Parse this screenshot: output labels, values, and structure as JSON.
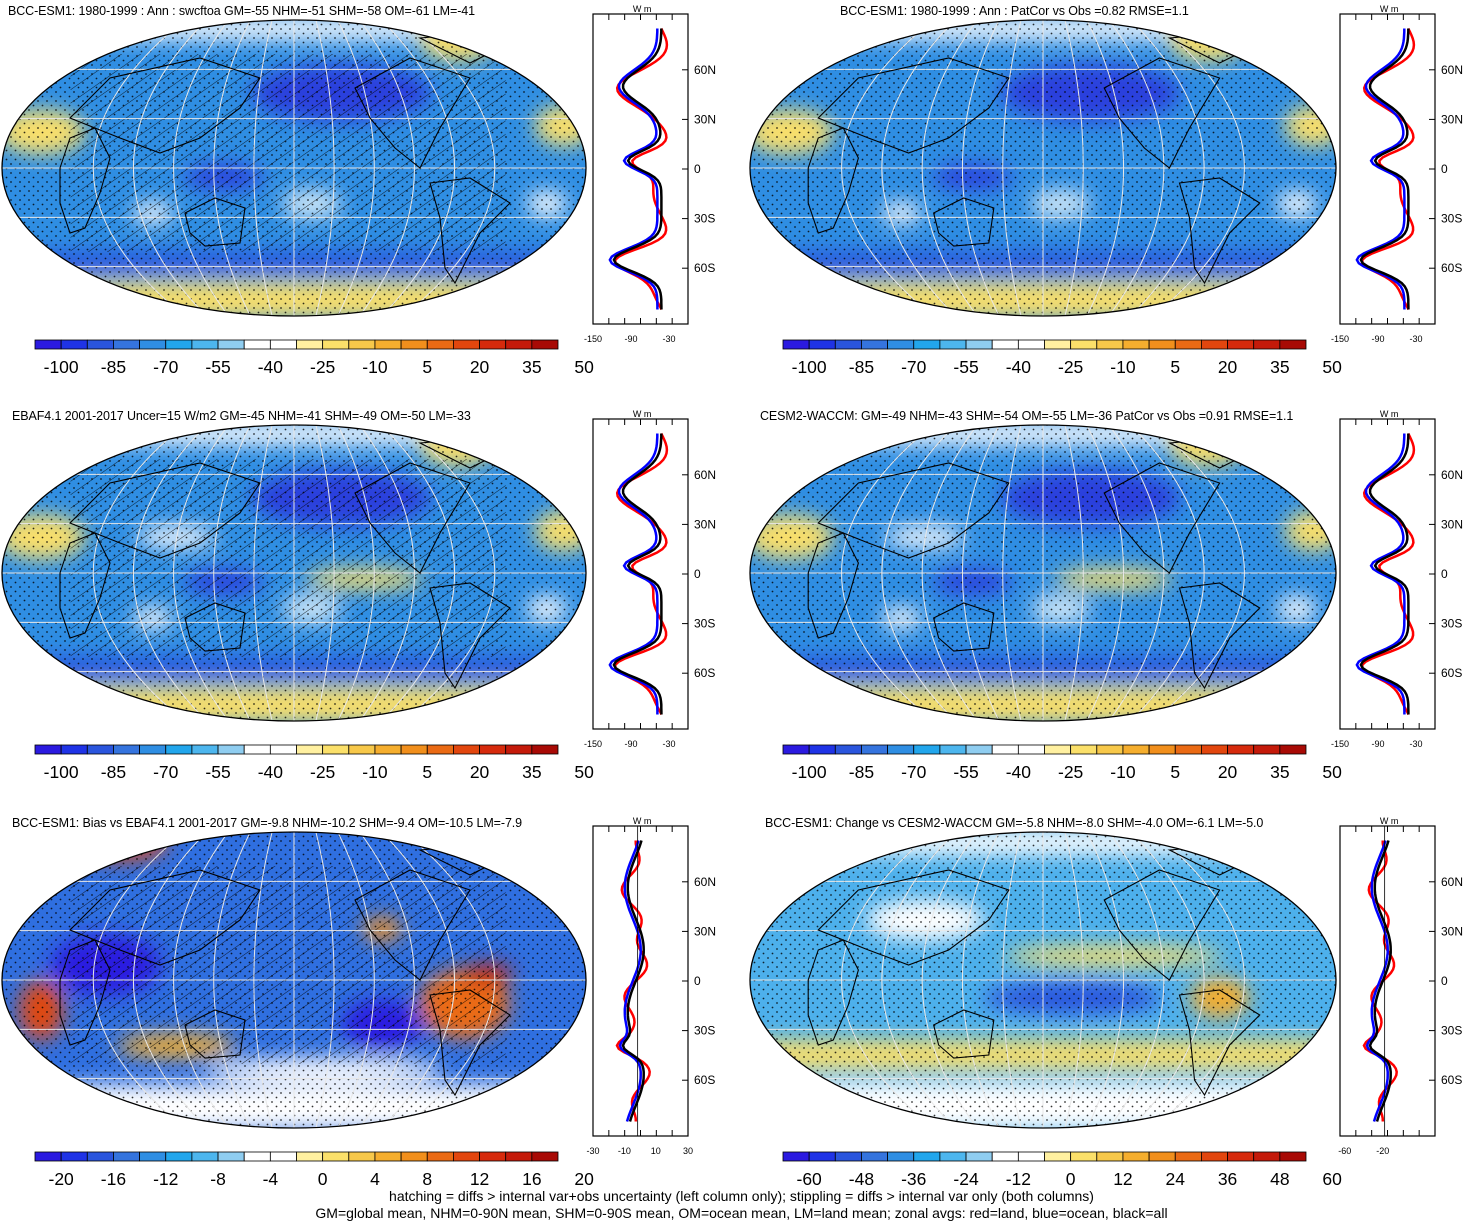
{
  "panels": [
    {
      "id": "p1",
      "title": "BCC-ESM1: 1980-1999 : Ann : swcftoa GM=-55 NHM=-51 SHM=-58 OM=-61 LM=-41",
      "hatch": true,
      "scheme": "abs",
      "colorbar": {
        "labels": [
          "-100",
          "-85",
          "-70",
          "-55",
          "-40",
          "-25",
          "-10",
          "5",
          "20",
          "35",
          "50"
        ]
      },
      "zonal": {
        "ticks": [
          "-150",
          "-90",
          "-30"
        ],
        "unit": "W m",
        "lat_labels": [
          "60N",
          "30N",
          "0",
          "30S",
          "60S"
        ]
      }
    },
    {
      "id": "p2",
      "title": "BCC-ESM1: 1980-1999 : Ann : PatCor vs Obs =0.82 RMSE=1.1",
      "hatch": false,
      "scheme": "abs",
      "colorbar": {
        "labels": [
          "-100",
          "-85",
          "-70",
          "-55",
          "-40",
          "-25",
          "-10",
          "5",
          "20",
          "35",
          "50"
        ]
      },
      "zonal": {
        "ticks": [
          "-150",
          "-90",
          "-30"
        ],
        "unit": "W m",
        "lat_labels": [
          "60N",
          "30N",
          "0",
          "30S",
          "60S"
        ]
      }
    },
    {
      "id": "p3",
      "title": "EBAF4.1 2001-2017 Uncer=15 W/m2 GM=-45 NHM=-41 SHM=-49 OM=-50 LM=-33",
      "hatch": true,
      "scheme": "abs",
      "colorbar": {
        "labels": [
          "-100",
          "-85",
          "-70",
          "-55",
          "-40",
          "-25",
          "-10",
          "5",
          "20",
          "35",
          "50"
        ]
      },
      "zonal": {
        "ticks": [
          "-150",
          "-90",
          "-30"
        ],
        "unit": "W m",
        "lat_labels": [
          "60N",
          "30N",
          "0",
          "30S",
          "60S"
        ]
      }
    },
    {
      "id": "p4",
      "title": "CESM2-WACCM: GM=-49 NHM=-43 SHM=-54 OM=-55 LM=-36 PatCor vs Obs =0.91 RMSE=1.1",
      "hatch": false,
      "scheme": "abs",
      "colorbar": {
        "labels": [
          "-100",
          "-85",
          "-70",
          "-55",
          "-40",
          "-25",
          "-10",
          "5",
          "20",
          "35",
          "50"
        ]
      },
      "zonal": {
        "ticks": [
          "-150",
          "-90",
          "-30"
        ],
        "unit": "W m",
        "lat_labels": [
          "60N",
          "30N",
          "0",
          "30S",
          "60S"
        ]
      }
    },
    {
      "id": "p5",
      "title": "BCC-ESM1: Bias vs EBAF4.1 2001-2017 GM=-9.8 NHM=-10.2 SHM=-9.4 OM=-10.5 LM=-7.9",
      "hatch": true,
      "scheme": "bias",
      "colorbar": {
        "labels": [
          "-20",
          "-16",
          "-12",
          "-8",
          "-4",
          "0",
          "4",
          "8",
          "12",
          "16",
          "20"
        ]
      },
      "zonal": {
        "ticks": [
          "-30",
          "-10",
          "10",
          "30"
        ],
        "unit": "W m",
        "lat_labels": [
          "60N",
          "30N",
          "0",
          "30S",
          "60S"
        ]
      }
    },
    {
      "id": "p6",
      "title": "BCC-ESM1: Change vs CESM2-WACCM GM=-5.8 NHM=-8.0 SHM=-4.0 OM=-6.1 LM=-5.0",
      "hatch": false,
      "scheme": "change",
      "colorbar": {
        "labels": [
          "-60",
          "-48",
          "-36",
          "-24",
          "-12",
          "0",
          "12",
          "24",
          "36",
          "48",
          "60"
        ]
      },
      "zonal": {
        "ticks": [
          "-60",
          "-20"
        ],
        "unit": "W m",
        "lat_labels": [
          "60N",
          "30N",
          "0",
          "30S",
          "60S"
        ]
      }
    }
  ],
  "colors": {
    "abs": [
      "#2b1ae0",
      "#1f33e6",
      "#2a55dd",
      "#3574de",
      "#2f8ee3",
      "#22a6ec",
      "#4db6ee",
      "#8fcdf0",
      "#ffffff",
      "#ffffff",
      "#fff0a0",
      "#fbe06a",
      "#f7c84a",
      "#f5ae2e",
      "#f18f1c",
      "#ea6a14",
      "#e2460e",
      "#d62a0c",
      "#c41a0a",
      "#a80a05"
    ],
    "diff": [
      "#2b1ae0",
      "#1f33e6",
      "#2a55dd",
      "#3574de",
      "#2f8ee3",
      "#22a6ec",
      "#4db6ee",
      "#8fcdf0",
      "#ffffff",
      "#ffffff",
      "#fff0a0",
      "#fbe06a",
      "#f7c84a",
      "#f5ae2e",
      "#f18f1c",
      "#ea6a14",
      "#e2460e",
      "#d62a0c",
      "#c41a0a",
      "#a80a05"
    ],
    "land_line": "#ff0000",
    "ocean_line": "#0000ff",
    "all_line": "#000000"
  },
  "footer": {
    "line1": "hatching = diffs > internal var+obs uncertainty (left column only); stippling = diffs > internal var only (both columns)",
    "line2": "GM=global mean, NHM=0-90N mean, SHM=0-90S mean, OM=ocean mean, LM=land mean; zonal avgs: red=land, blue=ocean, black=all"
  }
}
